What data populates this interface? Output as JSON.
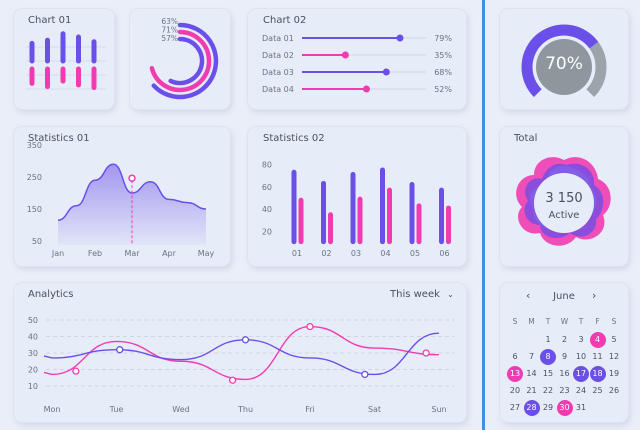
{
  "colors": {
    "purple": "#6a4fe8",
    "pink": "#f03cb0",
    "gray": "#8d979d",
    "accent_line": "#3d8ee6"
  },
  "chart01": {
    "title": "Chart 01",
    "bars": [
      {
        "purple": 0.55,
        "pink": 0.45
      },
      {
        "purple": 0.65,
        "pink": 0.55
      },
      {
        "purple": 0.85,
        "pink": 0.38
      },
      {
        "purple": 0.75,
        "pink": 0.5
      },
      {
        "purple": 0.6,
        "pink": 0.58
      }
    ]
  },
  "rings": {
    "labels": [
      "63%",
      "71%",
      "57%"
    ],
    "values": [
      63,
      71,
      57
    ]
  },
  "chart02": {
    "title": "Chart 02",
    "rows": [
      {
        "label": "Data 01",
        "value": "79%",
        "pct": 79,
        "color": "purple"
      },
      {
        "label": "Data 02",
        "value": "35%",
        "pct": 35,
        "color": "pink"
      },
      {
        "label": "Data 03",
        "value": "68%",
        "pct": 68,
        "color": "purple"
      },
      {
        "label": "Data 04",
        "value": "52%",
        "pct": 52,
        "color": "pink"
      }
    ]
  },
  "gauge": {
    "label": "70%",
    "value": 70
  },
  "stats01": {
    "title": "Statistics 01",
    "yticks": [
      "350",
      "250",
      "150",
      "50"
    ],
    "months": [
      "Jan",
      "Feb",
      "Mar",
      "Apr",
      "May"
    ],
    "highlight_month": "Mar"
  },
  "stats02": {
    "title": "Statistics 02",
    "yticks": [
      "80",
      "60",
      "40",
      "20"
    ],
    "xticks": [
      "01",
      "02",
      "03",
      "04",
      "05",
      "06"
    ]
  },
  "total": {
    "title": "Total",
    "value": "3 150",
    "caption": "Active"
  },
  "analytics": {
    "title": "Analytics",
    "range": "This week",
    "yticks": [
      "50",
      "40",
      "30",
      "20",
      "10"
    ],
    "days": [
      "Mon",
      "Tue",
      "Wed",
      "Thu",
      "Fri",
      "Sat",
      "Sun"
    ]
  },
  "calendar": {
    "month": "June",
    "prev": "‹",
    "next": "›",
    "weekdays": [
      "S",
      "M",
      "T",
      "W",
      "T",
      "F",
      "S"
    ],
    "days": [
      "1",
      "2",
      "3",
      "4",
      "5",
      "6",
      "7",
      "8",
      "9",
      "10",
      "11",
      "12",
      "13",
      "14",
      "15",
      "16",
      "17",
      "18",
      "19",
      "20",
      "21",
      "22",
      "23",
      "24",
      "25",
      "26",
      "27",
      "28",
      "29",
      "30",
      "31"
    ],
    "start_col": 2,
    "pink_days": [
      "4",
      "13",
      "30"
    ],
    "purple_days": [
      "8",
      "17",
      "18",
      "28"
    ]
  },
  "chart_data": [
    {
      "type": "bar",
      "title": "Chart 01",
      "series": []
    },
    {
      "type": "pie",
      "values": [
        63,
        71,
        57
      ]
    },
    {
      "type": "bar",
      "title": "Chart 02",
      "categories": [
        "Data 01",
        "Data 02",
        "Data 03",
        "Data 04"
      ],
      "values": [
        79,
        35,
        68,
        52
      ]
    },
    {
      "type": "pie",
      "values": [
        70
      ]
    },
    {
      "type": "area",
      "title": "Statistics 01",
      "categories": [
        "Jan",
        "Feb",
        "Mar",
        "Apr",
        "May"
      ],
      "ylim": [
        0,
        400
      ],
      "x": [
        0,
        0.5,
        1,
        1.5,
        2,
        2.5,
        3,
        3.5,
        4
      ],
      "series": [
        {
          "values": [
            115,
            160,
            240,
            290,
            200,
            235,
            180,
            170,
            150
          ]
        }
      ]
    },
    {
      "type": "bar",
      "title": "Statistics 02",
      "categories": [
        "01",
        "02",
        "03",
        "04",
        "05",
        "06"
      ],
      "ylim": [
        10,
        90
      ],
      "series": [
        {
          "values": [
            73,
            63,
            71,
            75,
            62,
            57
          ]
        },
        {
          "values": [
            48,
            35,
            49,
            57,
            43,
            41
          ]
        }
      ]
    },
    {
      "type": "line",
      "title": "Analytics",
      "categories": [
        "Mon",
        "Tue",
        "Wed",
        "Thu",
        "Fri",
        "Sat",
        "Sun"
      ],
      "ylim": [
        5,
        55
      ],
      "series": [
        {
          "values": [
            27,
            32,
            26,
            38,
            27,
            17,
            42
          ]
        },
        {
          "values": [
            17,
            37,
            25,
            14,
            46,
            33,
            29
          ]
        }
      ]
    }
  ]
}
